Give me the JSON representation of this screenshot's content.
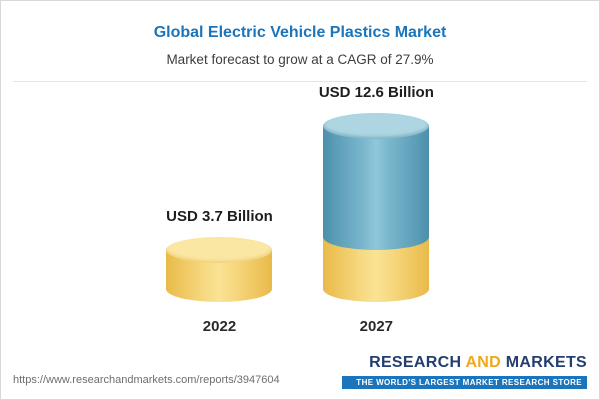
{
  "header": {
    "title": "Global Electric Vehicle Plastics Market",
    "subtitle": "Market forecast to grow at a CAGR of 27.9%"
  },
  "chart_data": {
    "type": "bar",
    "title": "Global Electric Vehicle Plastics Market",
    "subtitle": "Market forecast to grow at a CAGR of 27.9%",
    "categories": [
      "2022",
      "2027"
    ],
    "values": [
      3.7,
      12.6
    ],
    "value_labels": [
      "USD 3.7 Billion",
      "USD 12.6 Billion"
    ],
    "unit": "USD Billion",
    "cagr": "27.9%",
    "legend_position": "none",
    "grid": false,
    "colors": {
      "bar_2022": "#f3d272",
      "bar_2027_top": "#6faec7",
      "bar_2027_base": "#f3d272",
      "title": "#1b75bc"
    }
  },
  "footer": {
    "url": "https://www.researchandmarkets.com/reports/3947604",
    "logo": {
      "research": "RESEARCH ",
      "and": "AND",
      "markets": " MARKETS",
      "tagline": "THE WORLD'S LARGEST MARKET RESEARCH STORE"
    }
  }
}
